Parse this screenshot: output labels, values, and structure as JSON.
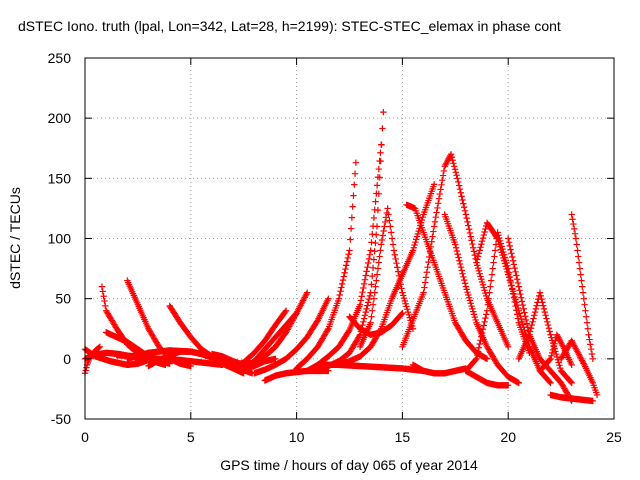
{
  "chart_data": {
    "type": "scatter",
    "title": "dSTEC Iono. truth (lpal, Lon=342, Lat=28, h=2199): STEC-STEC_elemax in phase cont",
    "xlabel": "GPS time / hours of day 065 of year 2014",
    "ylabel": "dSTEC  / TECUs",
    "xlim": [
      0,
      25
    ],
    "ylim": [
      -50,
      250
    ],
    "xticks": [
      0,
      5,
      10,
      15,
      20,
      25
    ],
    "yticks": [
      -50,
      0,
      50,
      100,
      150,
      200,
      250
    ],
    "grid": true,
    "marker": "plus",
    "color": "#ff0000",
    "series": [
      {
        "x": [
          0.0,
          0.5,
          1.2,
          2.0,
          2.5,
          3.0
        ],
        "y": [
          8,
          2,
          -2,
          -5,
          -4,
          -1
        ]
      },
      {
        "x": [
          0.0,
          0.1,
          0.2,
          0.3,
          0.5,
          0.7
        ],
        "y": [
          -12,
          -5,
          0,
          3,
          7,
          10
        ]
      },
      {
        "x": [
          0.0,
          0.4,
          1.0,
          1.6,
          2.2,
          2.8
        ],
        "y": [
          0,
          3,
          5,
          4,
          2,
          -1
        ]
      },
      {
        "x": [
          0.8,
          1.0,
          1.5,
          2.0,
          2.6,
          3.2,
          3.8
        ],
        "y": [
          60,
          40,
          25,
          12,
          3,
          -2,
          -5
        ]
      },
      {
        "x": [
          1.0,
          1.5,
          2.0,
          2.5,
          3.0,
          3.5,
          4.0
        ],
        "y": [
          22,
          18,
          14,
          8,
          2,
          -2,
          -4
        ]
      },
      {
        "x": [
          2.0,
          2.5,
          3.0,
          3.5,
          4.0,
          4.5,
          5.0
        ],
        "y": [
          65,
          45,
          25,
          10,
          0,
          -4,
          -6
        ]
      },
      {
        "x": [
          1.5,
          2.5,
          3.5,
          4.5,
          5.5,
          6.5
        ],
        "y": [
          3,
          2,
          0,
          -1,
          -3,
          -5
        ]
      },
      {
        "x": [
          4.0,
          4.5,
          5.0,
          5.5,
          6.0,
          6.5,
          7.0,
          7.5
        ],
        "y": [
          44,
          30,
          18,
          8,
          2,
          -4,
          -8,
          -12
        ]
      },
      {
        "x": [
          3.0,
          3.5,
          4.0,
          4.5,
          5.0,
          5.5,
          6.0
        ],
        "y": [
          -6,
          -1,
          3,
          6,
          6,
          4,
          1
        ]
      },
      {
        "x": [
          2.0,
          3.0,
          4.0,
          5.0,
          6.0,
          7.0,
          7.5
        ],
        "y": [
          0,
          5,
          7,
          6,
          2,
          -2,
          -5
        ]
      },
      {
        "x": [
          6.0,
          6.5,
          7.0,
          7.3,
          7.6,
          7.9
        ],
        "y": [
          4,
          2,
          -2,
          -6,
          -10,
          -12
        ]
      },
      {
        "x": [
          6.5,
          7.0,
          7.5,
          8.0,
          8.5,
          9.0
        ],
        "y": [
          0,
          -4,
          -8,
          -6,
          -2,
          0
        ]
      },
      {
        "x": [
          7.0,
          7.5,
          8.0,
          8.5,
          9.0,
          9.5
        ],
        "y": [
          -6,
          -3,
          5,
          15,
          28,
          40
        ]
      },
      {
        "x": [
          7.5,
          8.0,
          8.5,
          9.0,
          9.5,
          10.0
        ],
        "y": [
          -8,
          -2,
          8,
          18,
          28,
          38
        ]
      },
      {
        "x": [
          7.5,
          8.0,
          8.5,
          9.0,
          9.5,
          10.0,
          10.5
        ],
        "y": [
          -5,
          -3,
          2,
          10,
          22,
          38,
          55
        ]
      },
      {
        "x": [
          8.0,
          8.5,
          9.0,
          9.5,
          10.0,
          10.5,
          11.0,
          11.5
        ],
        "y": [
          -12,
          -9,
          -5,
          0,
          8,
          18,
          32,
          50
        ]
      },
      {
        "x": [
          8.5,
          9.0,
          9.5,
          10.0,
          10.5,
          11.0,
          11.5
        ],
        "y": [
          -18,
          -14,
          -12,
          -11,
          -10,
          -10,
          -10
        ]
      },
      {
        "x": [
          10.0,
          10.5,
          11.0,
          11.5,
          12.0,
          12.5,
          12.8
        ],
        "y": [
          -8,
          0,
          10,
          25,
          50,
          90,
          163
        ]
      },
      {
        "x": [
          10.5,
          11.0,
          11.5,
          12.0,
          12.5,
          13.0,
          13.5,
          14.0
        ],
        "y": [
          -10,
          -5,
          2,
          10,
          24,
          45,
          90,
          178
        ]
      },
      {
        "x": [
          11.0,
          11.5,
          12.0,
          12.5,
          13.0,
          13.5,
          13.8,
          14.1
        ],
        "y": [
          -10,
          -6,
          -2,
          5,
          20,
          55,
          110,
          205
        ]
      },
      {
        "x": [
          12.0,
          12.5,
          13.0,
          13.5,
          14.0,
          14.5,
          15.0,
          15.5,
          16.0,
          16.5
        ],
        "y": [
          -5,
          -2,
          2,
          10,
          25,
          50,
          70,
          90,
          120,
          145
        ]
      },
      {
        "x": [
          13.0,
          13.5,
          14.0,
          14.3,
          14.6,
          15.0,
          15.5
        ],
        "y": [
          10,
          30,
          95,
          125,
          90,
          55,
          25
        ]
      },
      {
        "x": [
          12.5,
          13.0,
          13.5,
          14.0,
          14.5,
          15.0
        ],
        "y": [
          35,
          25,
          20,
          22,
          28,
          38
        ]
      },
      {
        "x": [
          11.0,
          12.0,
          13.0,
          14.0,
          15.0,
          16.0
        ],
        "y": [
          -5,
          -5,
          -6,
          -7,
          -8,
          -10
        ]
      },
      {
        "x": [
          15.2,
          15.6,
          16.0,
          16.5,
          17.0,
          17.5,
          18.0,
          18.5,
          19.0
        ],
        "y": [
          128,
          125,
          105,
          80,
          55,
          30,
          15,
          5,
          0
        ]
      },
      {
        "x": [
          15.0,
          16.0,
          16.5,
          17.0,
          17.3,
          17.6,
          18.0,
          18.5,
          19.0,
          20.0
        ],
        "y": [
          10,
          55,
          110,
          160,
          170,
          150,
          120,
          80,
          50,
          10
        ]
      },
      {
        "x": [
          17.0,
          17.5,
          18.0,
          18.5,
          19.0,
          19.5,
          20.0,
          20.5
        ],
        "y": [
          120,
          95,
          60,
          30,
          10,
          -5,
          -15,
          -20
        ]
      },
      {
        "x": [
          15.5,
          16.0,
          16.5,
          17.0,
          17.5,
          18.0
        ],
        "y": [
          -5,
          -10,
          -12,
          -12,
          -10,
          -8
        ]
      },
      {
        "x": [
          18.0,
          18.5,
          19.0,
          19.5,
          20.0,
          20.5,
          21.0
        ],
        "y": [
          -10,
          0,
          40,
          105,
          75,
          30,
          5
        ]
      },
      {
        "x": [
          18.5,
          19.0,
          19.5,
          20.0,
          20.5,
          21.0,
          21.5,
          22.0
        ],
        "y": [
          80,
          113,
          100,
          70,
          40,
          10,
          -10,
          -20
        ]
      },
      {
        "x": [
          18.0,
          18.5,
          19.0,
          19.5,
          20.0
        ],
        "y": [
          -10,
          -15,
          -20,
          -22,
          -22
        ]
      },
      {
        "x": [
          20.0,
          20.5,
          21.0,
          21.5,
          22.0,
          22.5,
          23.0
        ],
        "y": [
          100,
          60,
          20,
          0,
          -10,
          -20,
          -35
        ]
      },
      {
        "x": [
          20.5,
          21.0,
          21.5,
          22.0,
          22.5,
          23.0
        ],
        "y": [
          0,
          20,
          55,
          20,
          -10,
          -20
        ]
      },
      {
        "x": [
          21.5,
          22.0,
          22.3,
          22.6,
          23.0
        ],
        "y": [
          -10,
          0,
          20,
          10,
          -5
        ]
      },
      {
        "x": [
          22.5,
          23.0,
          23.3,
          23.6,
          24.0,
          24.2
        ],
        "y": [
          0,
          15,
          5,
          -5,
          -20,
          -30
        ]
      },
      {
        "x": [
          23.0,
          23.2,
          23.5,
          23.8,
          24.0
        ],
        "y": [
          120,
          100,
          60,
          20,
          0
        ]
      },
      {
        "x": [
          22.0,
          22.5,
          23.0,
          23.5,
          24.0
        ],
        "y": [
          -30,
          -32,
          -33,
          -34,
          -35
        ]
      }
    ]
  }
}
